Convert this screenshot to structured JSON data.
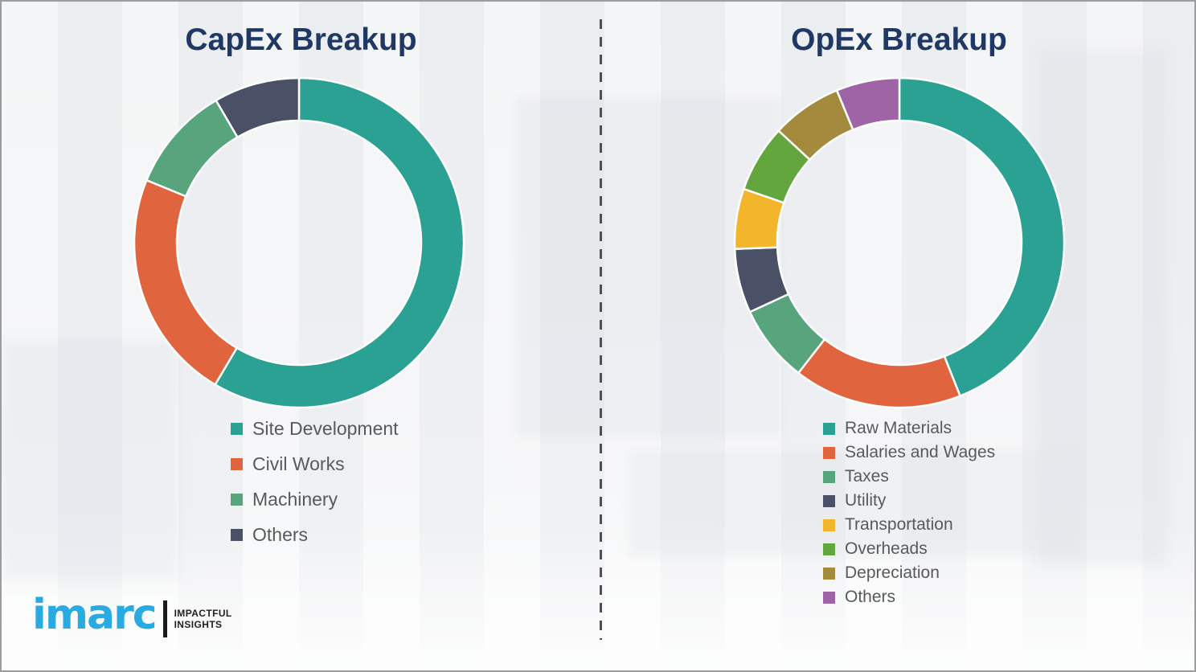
{
  "page": {
    "background": "#f1f2f4",
    "border_color": "#9c9c9c",
    "title_color": "#1f3864",
    "legend_text_color": "#58595b"
  },
  "divider": {
    "style": "vertical-dashed",
    "color": "#4f4f51"
  },
  "chart_data": [
    {
      "type": "pie",
      "subtype": "donut",
      "title": "CapEx Breakup",
      "legend_position": "below-left",
      "segments": [
        {
          "label": "Site Development",
          "value": 58.5,
          "color": "#2aa193"
        },
        {
          "label": "Civil Works",
          "value": 22.7,
          "color": "#e0643e"
        },
        {
          "label": "Machinery",
          "value": 10.4,
          "color": "#57a47d"
        },
        {
          "label": "Others",
          "value": 8.4,
          "color": "#4a5066"
        }
      ]
    },
    {
      "type": "pie",
      "subtype": "donut",
      "title": "OpEx Breakup",
      "legend_position": "below-left",
      "segments": [
        {
          "label": "Raw Materials",
          "value": 44.0,
          "color": "#2aa193"
        },
        {
          "label": "Salaries and Wages",
          "value": 16.5,
          "color": "#e0643e"
        },
        {
          "label": "Taxes",
          "value": 7.6,
          "color": "#57a47d"
        },
        {
          "label": "Utility",
          "value": 6.3,
          "color": "#4a5066"
        },
        {
          "label": "Transportation",
          "value": 5.9,
          "color": "#f2b52b"
        },
        {
          "label": "Overheads",
          "value": 6.6,
          "color": "#62a63d"
        },
        {
          "label": "Depreciation",
          "value": 6.9,
          "color": "#a38a3d"
        },
        {
          "label": "Others",
          "value": 6.2,
          "color": "#9f64a5"
        }
      ]
    }
  ],
  "logo": {
    "brand": "imarc",
    "brand_color": "#29abe2",
    "tagline_line1": "IMPACTFUL",
    "tagline_line2": "INSIGHTS"
  }
}
